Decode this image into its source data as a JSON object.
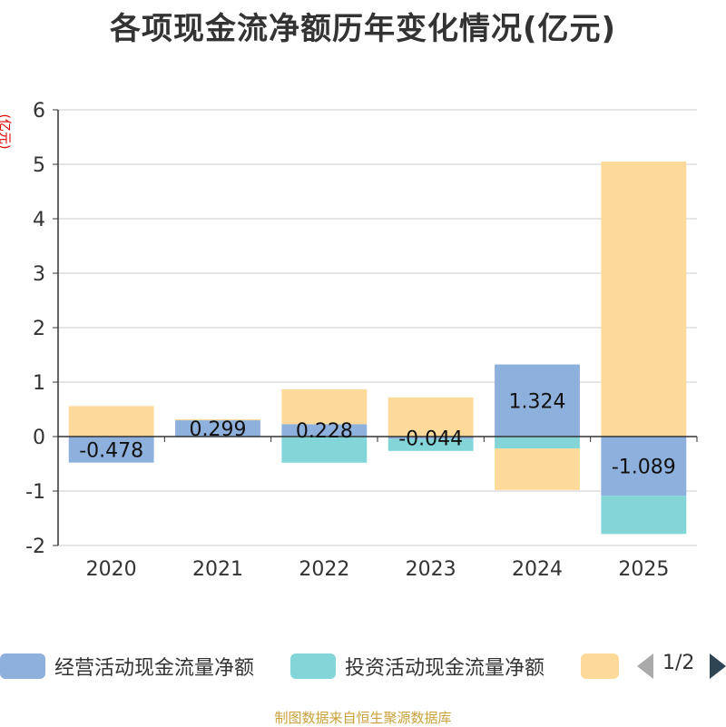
{
  "chart_data": {
    "type": "bar",
    "stacked": true,
    "title": "各项现金流净额历年变化情况(亿元)",
    "ylabel": "(亿元)",
    "xlabel": "",
    "categories": [
      "2020",
      "2021",
      "2022",
      "2023",
      "2024",
      "2025"
    ],
    "ylim": [
      -2,
      6
    ],
    "yticks": [
      -2,
      -1,
      0,
      1,
      2,
      3,
      4,
      5,
      6
    ],
    "series": [
      {
        "name": "经营活动现金流量净额",
        "color": "#8eb0dc",
        "values": [
          -0.478,
          0.299,
          0.228,
          -0.044,
          1.324,
          -1.089
        ],
        "labels": [
          "-0.478",
          "0.299",
          "0.228",
          "-0.044",
          "1.324",
          "-1.089"
        ]
      },
      {
        "name": "投资活动现金流量净额",
        "color": "#84d5d7",
        "values": [
          0.0,
          -0.01,
          -0.48,
          -0.22,
          -0.22,
          -0.7
        ]
      },
      {
        "name": "",
        "color": "#fdd99a",
        "values": [
          0.56,
          0.02,
          0.64,
          0.72,
          -0.76,
          5.05
        ]
      }
    ]
  },
  "legend": {
    "items": [
      {
        "label": "经营活动现金流量净额",
        "color": "#8eb0dc"
      },
      {
        "label": "投资活动现金流量净额",
        "color": "#84d5d7"
      },
      {
        "label": "",
        "color": "#fdd99a"
      }
    ],
    "page_text": "1/2"
  },
  "source": "制图数据来自恒生聚源数据库"
}
